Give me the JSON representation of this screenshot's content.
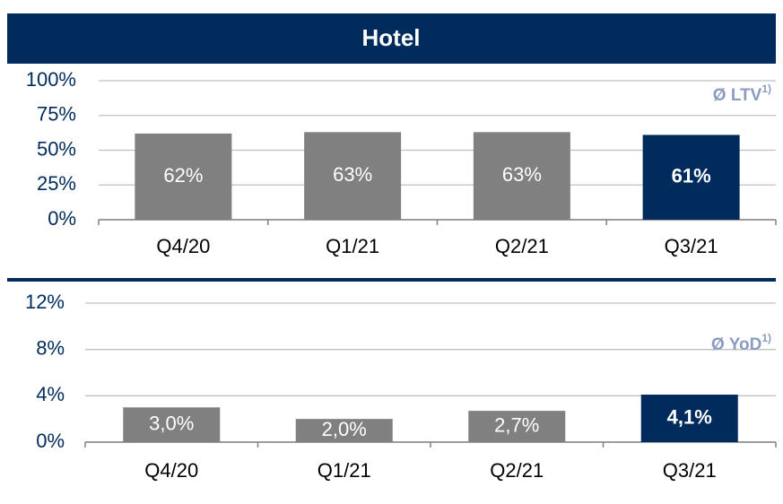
{
  "chart_data": [
    {
      "type": "bar",
      "title": "Hotel",
      "annotation": "Ø LTV",
      "annotation_note": "1)",
      "categories": [
        "Q4/20",
        "Q1/21",
        "Q2/21",
        "Q3/21"
      ],
      "values": [
        62,
        63,
        63,
        61
      ],
      "value_labels": [
        "62%",
        "63%",
        "63%",
        "61%"
      ],
      "colors": [
        "#808080",
        "#808080",
        "#808080",
        "#002b5c"
      ],
      "ylim": [
        0,
        100
      ],
      "yticks": [
        {
          "value": 0,
          "label": "0%"
        },
        {
          "value": 25,
          "label": "25%"
        },
        {
          "value": 50,
          "label": "50%"
        },
        {
          "value": 75,
          "label": "75%"
        },
        {
          "value": 100,
          "label": "100%"
        }
      ],
      "grid": true
    },
    {
      "type": "bar",
      "annotation": "Ø YoD",
      "annotation_note": "1)",
      "categories": [
        "Q4/20",
        "Q1/21",
        "Q2/21",
        "Q3/21"
      ],
      "values": [
        3.0,
        2.0,
        2.7,
        4.1
      ],
      "value_labels": [
        "3,0%",
        "2,0%",
        "2,7%",
        "4,1%"
      ],
      "colors": [
        "#808080",
        "#808080",
        "#808080",
        "#002b5c"
      ],
      "ylim": [
        0,
        12
      ],
      "yticks": [
        {
          "value": 0,
          "label": "0%"
        },
        {
          "value": 4,
          "label": "4%"
        },
        {
          "value": 8,
          "label": "8%"
        },
        {
          "value": 12,
          "label": "12%"
        }
      ],
      "grid": true
    }
  ]
}
